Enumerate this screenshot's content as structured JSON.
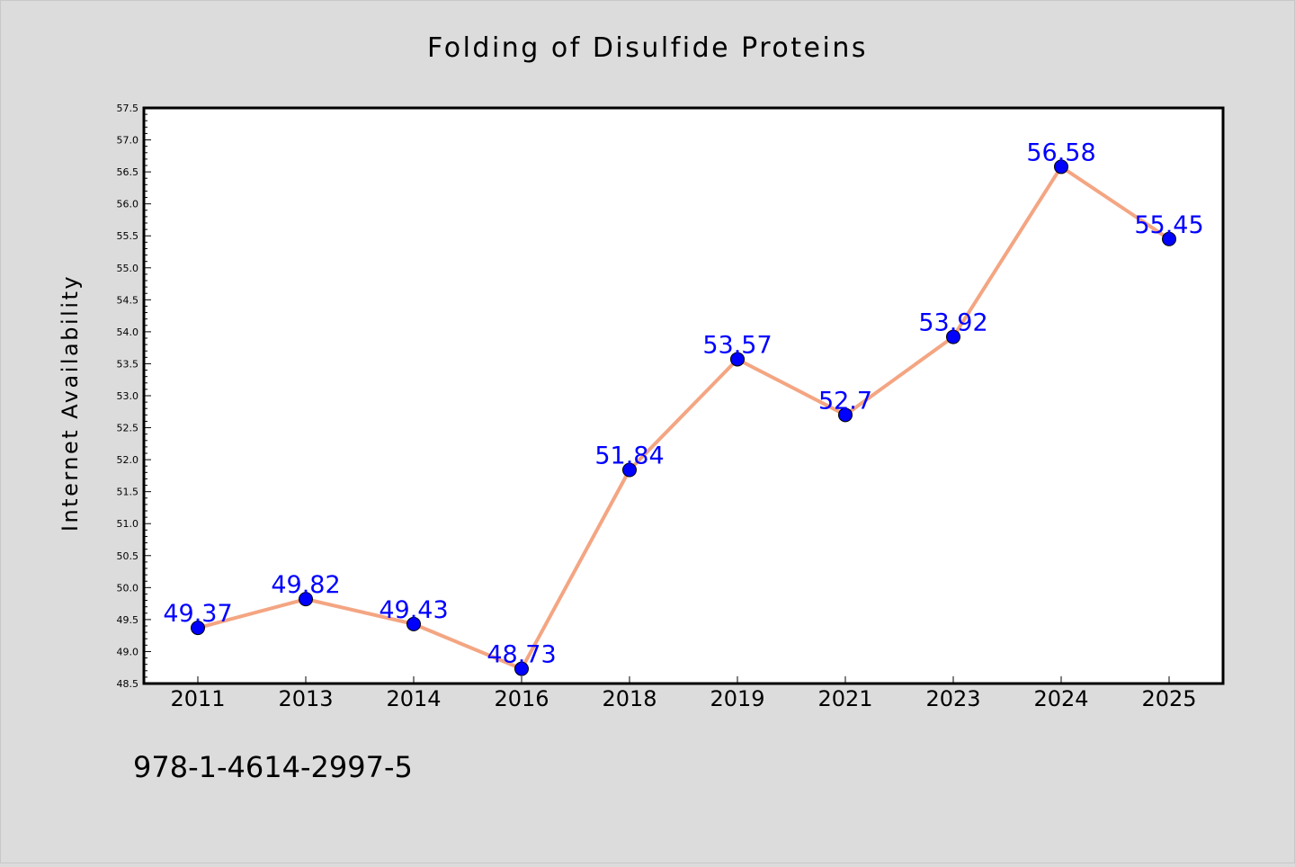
{
  "chart_data": {
    "type": "line",
    "title": "Folding of Disulfide Proteins",
    "xlabel": "",
    "ylabel": "Internet Availability",
    "categories": [
      "2011",
      "2013",
      "2014",
      "2016",
      "2018",
      "2019",
      "2021",
      "2023",
      "2024",
      "2025"
    ],
    "series": [
      {
        "values": [
          49.37,
          49.82,
          49.43,
          48.73,
          51.84,
          53.57,
          52.7,
          53.92,
          56.58,
          55.45
        ]
      }
    ],
    "data_labels": [
      "49.37",
      "49.82",
      "49.43",
      "48.73",
      "51.84",
      "53.57",
      "52.7",
      "53.92",
      "56.58",
      "55.45"
    ],
    "ylim": [
      48.5,
      57.5
    ],
    "yticks": [
      "48.5",
      "49.0",
      "49.5",
      "50.0",
      "50.5",
      "51.0",
      "51.5",
      "52.0",
      "52.5",
      "53.0",
      "53.5",
      "54.0",
      "54.5",
      "55.0",
      "55.5",
      "56.0",
      "56.5",
      "57.0",
      "57.5"
    ],
    "grid": false,
    "legend": "none",
    "annotation": "978-1-4614-2997-5",
    "colors": {
      "background": "#dcdcdc",
      "plot_background": "#ffffff",
      "line": "#f4a582",
      "marker": "#0000ff",
      "data_label": "#0000ff",
      "axis": "#000000"
    }
  }
}
